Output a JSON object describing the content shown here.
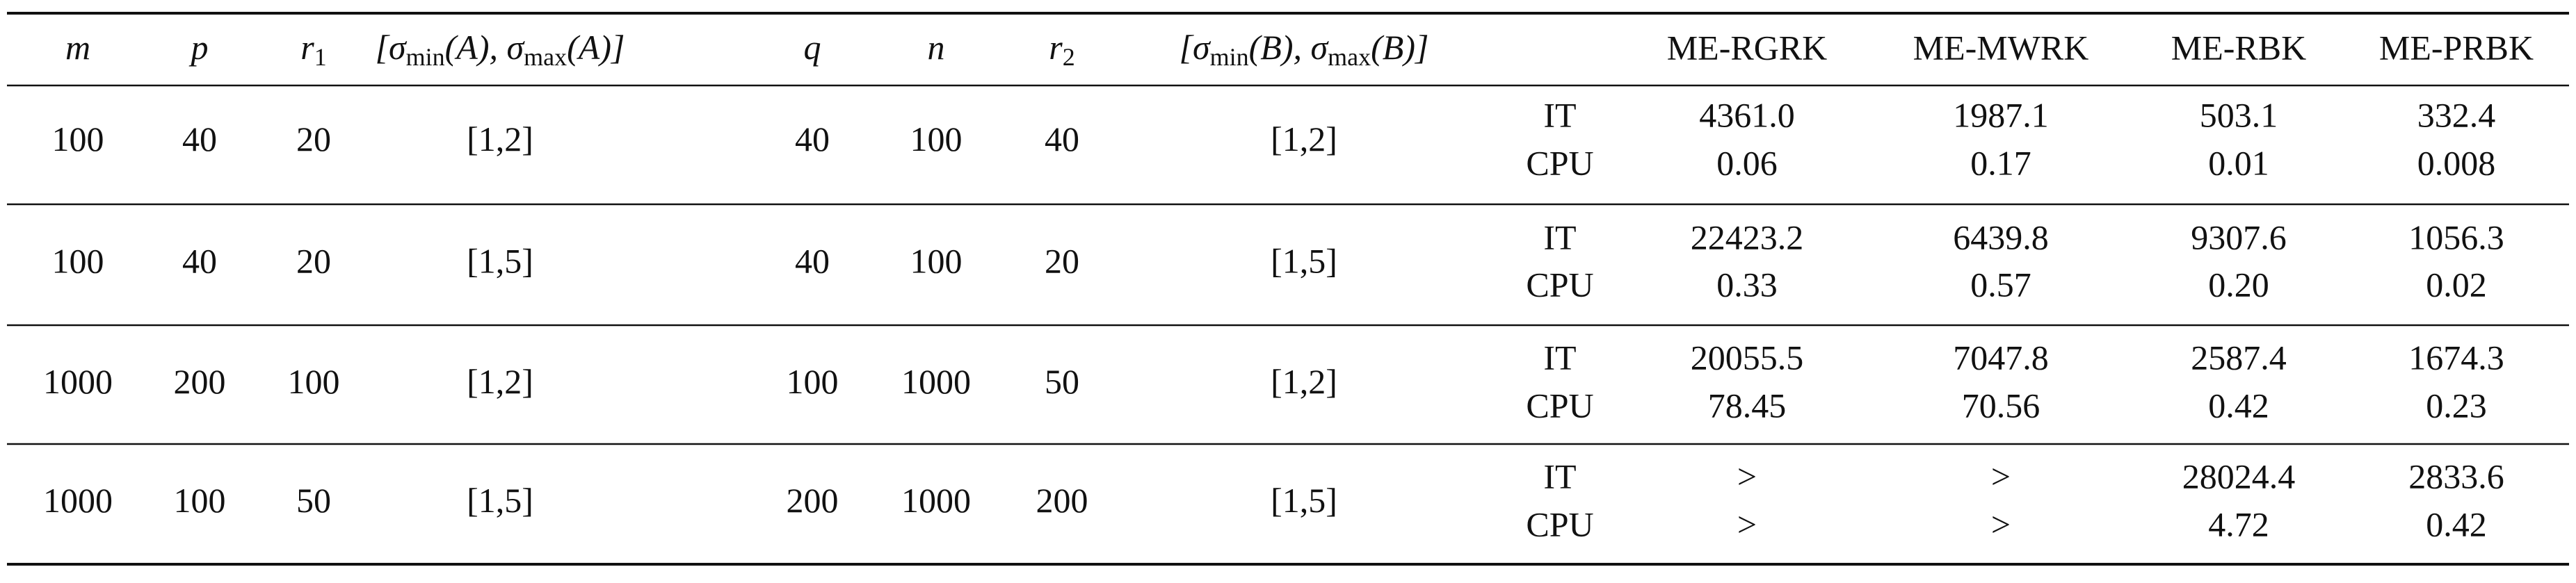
{
  "table": {
    "header": {
      "params": [
        [
          "m"
        ],
        [
          "p"
        ],
        [
          "r",
          "1"
        ],
        [
          "[σ",
          "min",
          "(A), σ",
          "max",
          "(A)]"
        ],
        [
          "q"
        ],
        [
          "n"
        ],
        [
          "r",
          "2"
        ],
        [
          "[σ",
          "min",
          "(B), σ",
          "max",
          "(B)]"
        ]
      ],
      "methods": [
        "ME-RGRK",
        "ME-MWRK",
        "ME-RBK",
        "ME-PRBK"
      ]
    },
    "rows": [
      {
        "params": [
          "100",
          "40",
          "20",
          "[1,2]",
          "40",
          "100",
          "40",
          "[1,2]"
        ],
        "metrics": [
          "IT",
          "CPU"
        ],
        "results": [
          [
            "4361.0",
            "0.06"
          ],
          [
            "1987.1",
            "0.17"
          ],
          [
            "503.1",
            "0.01"
          ],
          [
            "332.4",
            "0.008"
          ]
        ]
      },
      {
        "params": [
          "100",
          "40",
          "20",
          "[1,5]",
          "40",
          "100",
          "20",
          "[1,5]"
        ],
        "metrics": [
          "IT",
          "CPU"
        ],
        "results": [
          [
            "22423.2",
            "0.33"
          ],
          [
            "6439.8",
            "0.57"
          ],
          [
            "9307.6",
            "0.20"
          ],
          [
            "1056.3",
            "0.02"
          ]
        ]
      },
      {
        "params": [
          "1000",
          "200",
          "100",
          "[1,2]",
          "100",
          "1000",
          "50",
          "[1,2]"
        ],
        "metrics": [
          "IT",
          "CPU"
        ],
        "results": [
          [
            "20055.5",
            "78.45"
          ],
          [
            "7047.8",
            "70.56"
          ],
          [
            "2587.4",
            "0.42"
          ],
          [
            "1674.3",
            "0.23"
          ]
        ]
      },
      {
        "params": [
          "1000",
          "100",
          "50",
          "[1,5]",
          "200",
          "1000",
          "200",
          "[1,5]"
        ],
        "metrics": [
          "IT",
          "CPU"
        ],
        "results": [
          [
            ">",
            ">"
          ],
          [
            ">",
            ">"
          ],
          [
            "28024.4",
            "4.72"
          ],
          [
            "2833.6",
            "0.42"
          ]
        ]
      }
    ]
  }
}
